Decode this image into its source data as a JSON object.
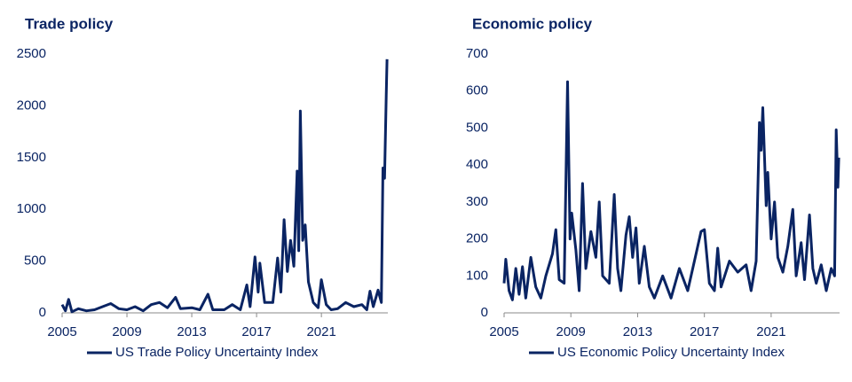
{
  "chart_data": [
    {
      "type": "line",
      "title": "Trade policy",
      "x": [
        2005,
        2005.2,
        2005.4,
        2005.6,
        2006,
        2006.5,
        2007,
        2007.5,
        2008,
        2008.5,
        2009,
        2009.5,
        2010,
        2010.5,
        2011,
        2011.5,
        2012,
        2012.3,
        2013,
        2013.5,
        2014,
        2014.3,
        2015,
        2015.5,
        2016,
        2016.4,
        2016.6,
        2016.9,
        2017.1,
        2017.2,
        2017.5,
        2018,
        2018.3,
        2018.5,
        2018.7,
        2018.9,
        2019.1,
        2019.3,
        2019.5,
        2019.6,
        2019.7,
        2019.85,
        2020,
        2020.2,
        2020.5,
        2020.8,
        2021,
        2021.3,
        2021.6,
        2022,
        2022.5,
        2023,
        2023.5,
        2023.8,
        2024,
        2024.2,
        2024.5,
        2024.7,
        2024.8,
        2024.9,
        2025,
        2025.05
      ],
      "series": [
        {
          "name": "US Trade Policy Uncertainty Index",
          "color": "#0a2463",
          "values": [
            80,
            20,
            130,
            10,
            40,
            20,
            30,
            60,
            90,
            40,
            30,
            60,
            20,
            80,
            100,
            50,
            150,
            40,
            50,
            30,
            180,
            30,
            30,
            80,
            30,
            270,
            60,
            540,
            200,
            480,
            100,
            100,
            530,
            200,
            900,
            400,
            700,
            450,
            1370,
            600,
            1950,
            700,
            850,
            300,
            100,
            50,
            320,
            80,
            30,
            40,
            100,
            60,
            80,
            30,
            210,
            60,
            220,
            100,
            1400,
            1300,
            2100,
            2450
          ]
        }
      ],
      "xlim": [
        2005,
        2025.1
      ],
      "xticks": [
        2005,
        2009,
        2013,
        2017,
        2021
      ],
      "ylim": [
        0,
        2500
      ],
      "yticks": [
        0,
        500,
        1000,
        1500,
        2000,
        2500
      ]
    },
    {
      "type": "line",
      "title": "Economic policy",
      "x": [
        2005,
        2005.1,
        2005.3,
        2005.5,
        2005.7,
        2005.9,
        2006.1,
        2006.3,
        2006.6,
        2006.9,
        2007.2,
        2007.5,
        2007.9,
        2008.1,
        2008.3,
        2008.6,
        2008.8,
        2008.95,
        2009.05,
        2009.3,
        2009.5,
        2009.7,
        2009.9,
        2010.2,
        2010.5,
        2010.7,
        2010.9,
        2011.3,
        2011.6,
        2011.8,
        2012,
        2012.3,
        2012.5,
        2012.7,
        2012.9,
        2013.1,
        2013.4,
        2013.7,
        2014,
        2014.5,
        2015,
        2015.5,
        2016,
        2016.5,
        2016.8,
        2017,
        2017.3,
        2017.6,
        2017.8,
        2018,
        2018.5,
        2019,
        2019.5,
        2019.8,
        2020.1,
        2020.3,
        2020.4,
        2020.5,
        2020.7,
        2020.8,
        2021,
        2021.2,
        2021.4,
        2021.7,
        2022,
        2022.3,
        2022.5,
        2022.8,
        2023,
        2023.3,
        2023.5,
        2023.7,
        2024,
        2024.3,
        2024.6,
        2024.8,
        2024.9,
        2025,
        2025.05
      ],
      "series": [
        {
          "name": "US Economic Policy Uncertainty Index",
          "color": "#0a2463",
          "values": [
            80,
            145,
            60,
            35,
            120,
            50,
            125,
            40,
            150,
            70,
            40,
            100,
            160,
            225,
            90,
            80,
            625,
            200,
            270,
            170,
            60,
            350,
            120,
            220,
            150,
            300,
            100,
            80,
            320,
            120,
            60,
            210,
            260,
            150,
            230,
            80,
            180,
            70,
            40,
            100,
            40,
            120,
            60,
            160,
            220,
            225,
            80,
            60,
            175,
            70,
            140,
            110,
            130,
            60,
            140,
            515,
            440,
            555,
            290,
            380,
            200,
            300,
            150,
            110,
            180,
            280,
            100,
            190,
            90,
            265,
            120,
            80,
            130,
            60,
            120,
            100,
            495,
            340,
            420
          ]
        }
      ],
      "xlim": [
        2005,
        2025.1
      ],
      "xticks": [
        2005,
        2009,
        2013,
        2017,
        2021
      ],
      "ylim": [
        0,
        700
      ],
      "yticks": [
        0,
        100,
        200,
        300,
        400,
        500,
        600,
        700
      ]
    }
  ]
}
